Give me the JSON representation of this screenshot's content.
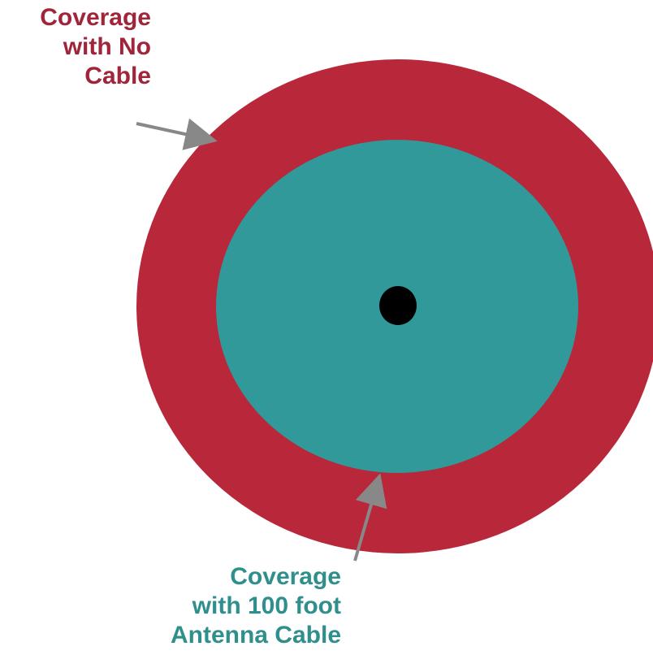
{
  "colors": {
    "outer_ring": "#b8273a",
    "inner_disc": "#31999a",
    "center_dot": "#000000",
    "arrow": "#888888",
    "outer_label": "#a0243a",
    "inner_label": "#2f8f8c",
    "background": "#ffffff"
  },
  "outer_label": {
    "lines": [
      "Coverage",
      "with No",
      "Cable"
    ]
  },
  "inner_label": {
    "lines": [
      "Coverage",
      "with 100 foot",
      "Antenna Cable"
    ]
  }
}
